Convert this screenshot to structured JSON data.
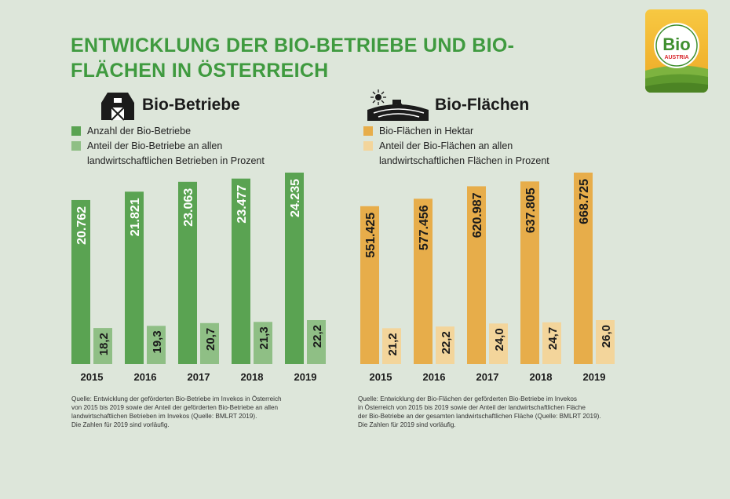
{
  "title": "ENTWICKLUNG DER BIO-BETRIEBE UND BIO-FLÄCHEN IN ÖSTERREICH",
  "logo": {
    "text_main": "Bio",
    "text_sub": "AUSTRIA"
  },
  "colors": {
    "background": "#dde6da",
    "title": "#3f9a3f",
    "betriebe_dark": "#5aa352",
    "betriebe_light": "#8fbf85",
    "flaechen_dark": "#e7ad4a",
    "flaechen_light": "#f3d59b"
  },
  "left_panel": {
    "heading": "Bio-Betriebe",
    "icon": "barn-icon",
    "legend": [
      {
        "label": "Anzahl der Bio-Betriebe"
      },
      {
        "label": "Anteil der Bio-Betriebe an allen",
        "label2": "landwirtschaftlichen Betrieben in Prozent"
      }
    ],
    "source_lines": [
      "Quelle: Entwicklung der geförderten Bio-Betriebe im Invekos in Österreich",
      "von 2015 bis 2019 sowie der Anteil der geförderten Bio-Betriebe an allen",
      "landwirtschaftlichen Betrieben im Invekos (Quelle: BMLRT 2019).",
      "Die Zahlen für 2019 sind vorläufig."
    ]
  },
  "right_panel": {
    "heading": "Bio-Flächen",
    "icon": "field-tractor-icon",
    "legend": [
      {
        "label": "Bio-Flächen in Hektar"
      },
      {
        "label": "Anteil der Bio-Flächen an allen",
        "label2": "landwirtschaftlichen Flächen in Prozent"
      }
    ],
    "source_lines": [
      "Quelle: Entwicklung der Bio-Flächen der geförderten Bio-Betriebe im Invekos",
      "in Österreich von 2015 bis 2019 sowie der Anteil der landwirtschaftlichen Fläche",
      "der Bio-Betriebe an der gesamten landwirtschaftlichen Fläche (Quelle: BMLRT 2019).",
      "Die Zahlen für 2019 sind vorläufig."
    ]
  },
  "chart_data": [
    {
      "type": "bar",
      "title": "Bio-Betriebe",
      "categories": [
        "2015",
        "2016",
        "2017",
        "2018",
        "2019"
      ],
      "series": [
        {
          "name": "Anzahl der Bio-Betriebe",
          "values": [
            20762,
            21821,
            23063,
            23477,
            24235
          ],
          "labels": [
            "20.762",
            "21.821",
            "23.063",
            "23.477",
            "24.235"
          ],
          "color": "#5aa352"
        },
        {
          "name": "Anteil der Bio-Betriebe an allen landwirtschaftlichen Betrieben in Prozent",
          "values": [
            18.2,
            19.3,
            20.7,
            21.3,
            22.2
          ],
          "labels": [
            "18,2",
            "19,3",
            "20,7",
            "21,3",
            "22,2"
          ],
          "color": "#8fbf85"
        }
      ]
    },
    {
      "type": "bar",
      "title": "Bio-Flächen",
      "categories": [
        "2015",
        "2016",
        "2017",
        "2018",
        "2019"
      ],
      "series": [
        {
          "name": "Bio-Flächen in Hektar",
          "values": [
            551425,
            577456,
            620987,
            637805,
            668725
          ],
          "labels": [
            "551.425",
            "577.456",
            "620.987",
            "637.805",
            "668.725"
          ],
          "color": "#e7ad4a"
        },
        {
          "name": "Anteil der Bio-Flächen an allen landwirtschaftlichen Flächen in Prozent",
          "values": [
            21.2,
            22.2,
            24.0,
            24.7,
            26.0
          ],
          "labels": [
            "21,2",
            "22,2",
            "24,0",
            "24,7",
            "26,0"
          ],
          "color": "#f3d59b"
        }
      ]
    }
  ]
}
